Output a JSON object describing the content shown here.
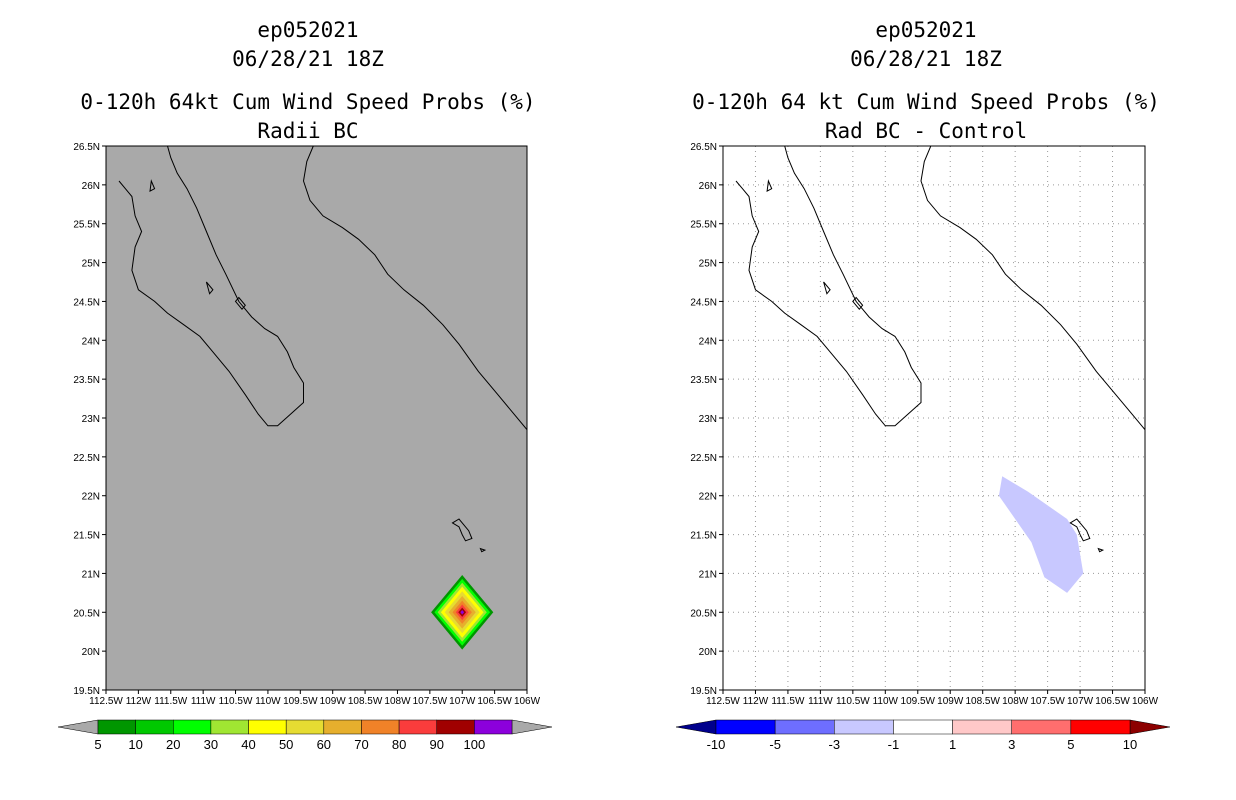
{
  "chart_data": [
    {
      "type": "heatmap",
      "title_lines": [
        "ep052021",
        "06/28/21 18Z",
        "0-120h 64kt Cum Wind Speed Probs (%)",
        "Radii BC"
      ],
      "xlabel": "",
      "ylabel": "",
      "xlim": [
        -112.5,
        -106
      ],
      "ylim": [
        19.5,
        26.5
      ],
      "x_ticks": [
        "112.5W",
        "112W",
        "111.5W",
        "111W",
        "110.5W",
        "110W",
        "109.5W",
        "109W",
        "108.5W",
        "108W",
        "107.5W",
        "107W",
        "106.5W",
        "106W"
      ],
      "y_ticks": [
        "19.5N",
        "20N",
        "20.5N",
        "21N",
        "21.5N",
        "22N",
        "22.5N",
        "23N",
        "23.5N",
        "24N",
        "24.5N",
        "25N",
        "25.5N",
        "26N",
        "26.5N"
      ],
      "grid": false,
      "background": "#a9a9a9",
      "colorbar": {
        "labels": [
          "5",
          "10",
          "20",
          "30",
          "40",
          "50",
          "60",
          "70",
          "80",
          "90",
          "100"
        ],
        "colors": [
          "#009600",
          "#00c800",
          "#00ff00",
          "#a0e632",
          "#ffff00",
          "#e6dc32",
          "#e6af2d",
          "#f08228",
          "#fa3c3c",
          "#a00000",
          "#8c00dc"
        ],
        "end_colors": [
          "#a9a9a9",
          "#a9a9a9"
        ]
      },
      "feature": {
        "label": "wind probability maximum",
        "center": [
          -107.0,
          20.5
        ],
        "levels": [
          {
            "value": 5,
            "half_width_deg": 0.48,
            "color": "#009600"
          },
          {
            "value": 10,
            "half_width_deg": 0.43,
            "color": "#00ff00"
          },
          {
            "value": 20,
            "half_width_deg": 0.38,
            "color": "#a0e632"
          },
          {
            "value": 30,
            "half_width_deg": 0.33,
            "color": "#ffff00"
          },
          {
            "value": 40,
            "half_width_deg": 0.27,
            "color": "#e6dc32"
          },
          {
            "value": 50,
            "half_width_deg": 0.21,
            "color": "#e6af2d"
          },
          {
            "value": 60,
            "half_width_deg": 0.15,
            "color": "#f08228"
          },
          {
            "value": 70,
            "half_width_deg": 0.1,
            "color": "#fa3c3c"
          },
          {
            "value": 80,
            "half_width_deg": 0.06,
            "color": "#a00000"
          },
          {
            "value": 90,
            "half_width_deg": 0.03,
            "color": "#8c00dc"
          }
        ]
      }
    },
    {
      "type": "heatmap",
      "title_lines": [
        "ep052021",
        "06/28/21 18Z",
        "0-120h 64 kt Cum Wind Speed Probs (%)",
        "Rad BC - Control"
      ],
      "xlabel": "",
      "ylabel": "",
      "xlim": [
        -112.5,
        -106
      ],
      "ylim": [
        19.5,
        26.5
      ],
      "x_ticks": [
        "112.5W",
        "112W",
        "111.5W",
        "111W",
        "110.5W",
        "110W",
        "109.5W",
        "109W",
        "108.5W",
        "108W",
        "107.5W",
        "107W",
        "106.5W",
        "106W"
      ],
      "y_ticks": [
        "19.5N",
        "20N",
        "20.5N",
        "21N",
        "21.5N",
        "22N",
        "22.5N",
        "23N",
        "23.5N",
        "24N",
        "24.5N",
        "25N",
        "25.5N",
        "26N",
        "26.5N"
      ],
      "grid": true,
      "background": "#ffffff",
      "colorbar": {
        "labels": [
          "-10",
          "-5",
          "-3",
          "-1",
          "1",
          "3",
          "5",
          "10"
        ],
        "colors": [
          "#0000ff",
          "#6e6eff",
          "#c8c8ff",
          "#ffffff",
          "#ffc8c8",
          "#ff6e6e",
          "#ff0000"
        ],
        "end_colors": [
          "#00008c",
          "#8c0000"
        ]
      },
      "feature": {
        "label": "difference region -3 to -1",
        "color": "#c8c8ff",
        "polygon_lonlat": [
          [
            -108.2,
            22.25
          ],
          [
            -108.25,
            22.0
          ],
          [
            -107.75,
            21.4
          ],
          [
            -107.55,
            20.95
          ],
          [
            -107.2,
            20.75
          ],
          [
            -106.95,
            21.0
          ],
          [
            -107.05,
            21.5
          ],
          [
            -107.2,
            21.7
          ],
          [
            -107.8,
            22.05
          ]
        ]
      }
    }
  ],
  "coastlines": {
    "baja_peninsula": [
      [
        -112.3,
        26.05
      ],
      [
        -112.2,
        25.95
      ],
      [
        -112.1,
        25.85
      ],
      [
        -112.05,
        25.6
      ],
      [
        -111.95,
        25.4
      ],
      [
        -112.05,
        25.2
      ],
      [
        -112.1,
        24.9
      ],
      [
        -112.0,
        24.65
      ],
      [
        -111.75,
        24.5
      ],
      [
        -111.55,
        24.35
      ],
      [
        -111.3,
        24.2
      ],
      [
        -111.05,
        24.05
      ],
      [
        -110.85,
        23.85
      ],
      [
        -110.6,
        23.6
      ],
      [
        -110.35,
        23.3
      ],
      [
        -110.15,
        23.05
      ],
      [
        -110.0,
        22.9
      ],
      [
        -109.85,
        22.9
      ],
      [
        -109.65,
        23.05
      ],
      [
        -109.45,
        23.2
      ],
      [
        -109.45,
        23.45
      ],
      [
        -109.6,
        23.65
      ],
      [
        -109.7,
        23.85
      ],
      [
        -109.85,
        24.05
      ],
      [
        -110.05,
        24.15
      ],
      [
        -110.25,
        24.3
      ],
      [
        -110.45,
        24.5
      ],
      [
        -110.65,
        24.85
      ],
      [
        -110.8,
        25.1
      ],
      [
        -110.95,
        25.4
      ],
      [
        -111.1,
        25.7
      ],
      [
        -111.25,
        25.95
      ],
      [
        -111.4,
        26.15
      ],
      [
        -111.5,
        26.35
      ],
      [
        -111.55,
        26.5
      ]
    ],
    "mainland_mexico": [
      [
        -109.3,
        26.5
      ],
      [
        -109.4,
        26.3
      ],
      [
        -109.45,
        26.05
      ],
      [
        -109.35,
        25.8
      ],
      [
        -109.15,
        25.6
      ],
      [
        -108.85,
        25.45
      ],
      [
        -108.6,
        25.3
      ],
      [
        -108.35,
        25.1
      ],
      [
        -108.15,
        24.85
      ],
      [
        -107.9,
        24.65
      ],
      [
        -107.6,
        24.45
      ],
      [
        -107.3,
        24.2
      ],
      [
        -107.05,
        23.95
      ],
      [
        -106.75,
        23.6
      ],
      [
        -106.45,
        23.3
      ],
      [
        -106.2,
        23.05
      ],
      [
        -106.0,
        22.85
      ]
    ],
    "islands": [
      [
        [
          -107.15,
          21.65
        ],
        [
          -107.05,
          21.6
        ],
        [
          -107.0,
          21.5
        ],
        [
          -106.95,
          21.42
        ],
        [
          -106.85,
          21.45
        ],
        [
          -106.9,
          21.55
        ],
        [
          -107.05,
          21.7
        ]
      ],
      [
        [
          -106.72,
          21.32
        ],
        [
          -106.65,
          21.3
        ],
        [
          -106.7,
          21.28
        ]
      ],
      [
        [
          -111.8,
          26.05
        ],
        [
          -111.75,
          25.95
        ],
        [
          -111.82,
          25.92
        ]
      ],
      [
        [
          -110.95,
          24.75
        ],
        [
          -110.9,
          24.6
        ],
        [
          -110.85,
          24.65
        ]
      ],
      [
        [
          -110.45,
          24.55
        ],
        [
          -110.35,
          24.45
        ],
        [
          -110.4,
          24.4
        ],
        [
          -110.5,
          24.5
        ]
      ]
    ]
  }
}
